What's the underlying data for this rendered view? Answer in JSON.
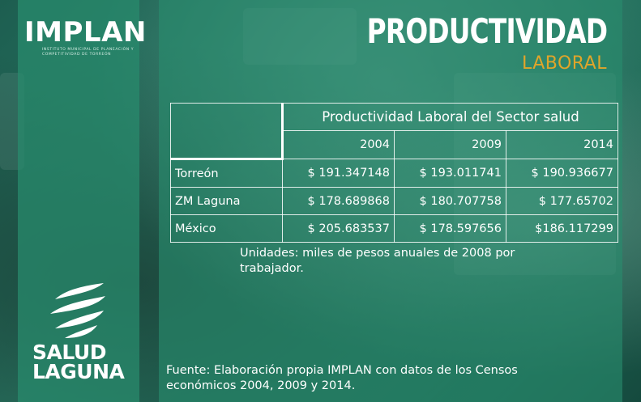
{
  "header": {
    "logo": "IMPLAN",
    "logo_subtitle": "INSTITUTO MUNICIPAL DE PLANEACIÓN Y COMPETITIVIDAD DE TORREÓN",
    "title": "PRODUCTIVIDAD",
    "subtitle": "LABORAL"
  },
  "table": {
    "caption": "Productividad Laboral del Sector salud",
    "years": [
      "2004",
      "2009",
      "2014"
    ],
    "rows": [
      {
        "label": "Torreón",
        "values": [
          "$ 191.347148",
          "$ 193.011741",
          "$ 190.936677"
        ]
      },
      {
        "label": "ZM Laguna",
        "values": [
          "$ 178.689868",
          "$ 180.707758",
          "$ 177.65702"
        ]
      },
      {
        "label": "México",
        "values": [
          "$ 205.683537",
          "$ 178.597656",
          "$186.117299"
        ]
      }
    ]
  },
  "notes": {
    "units": "Unidades: miles de pesos anuales de 2008 por trabajador.",
    "source": "Fuente: Elaboración propia IMPLAN con datos de los Censos económicos 2004, 2009 y 2014."
  },
  "brand": {
    "line1": "SALUD",
    "line2": "LAGUNA"
  },
  "colors": {
    "panel": "#289070",
    "accent": "#e0a52a"
  }
}
